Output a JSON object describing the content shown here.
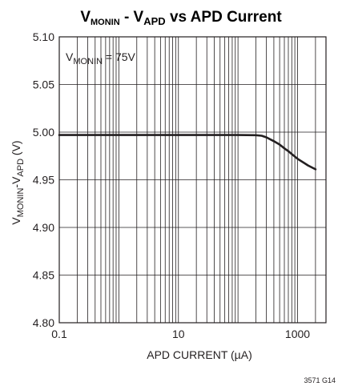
{
  "chart_data": {
    "type": "line",
    "title": {
      "main1": "V",
      "sub1": "MONIN",
      "mid": " - V",
      "sub2": "APD",
      "rest": " vs APD Current"
    },
    "xlabel": "APD CURRENT (µA)",
    "ylabel": {
      "main1": "V",
      "sub1": "MONIN",
      "mid": "-V",
      "sub2": "APD",
      "rest": " (V)"
    },
    "annotation": {
      "main": "V",
      "sub": "MONIN",
      "rest": " = 75V"
    },
    "figure_id": "3571 G14",
    "x_scale": "log",
    "xlim": [
      0.1,
      3000
    ],
    "ylim": [
      4.8,
      5.1
    ],
    "x_ticks": [
      {
        "value": 0.1,
        "label": "0.1"
      },
      {
        "value": 10,
        "label": "10"
      },
      {
        "value": 1000,
        "label": "1000"
      }
    ],
    "y_ticks": [
      {
        "value": 5.1,
        "label": "5.10"
      },
      {
        "value": 5.05,
        "label": "5.05"
      },
      {
        "value": 5.0,
        "label": "5.00"
      },
      {
        "value": 4.95,
        "label": "4.95"
      },
      {
        "value": 4.9,
        "label": "4.90"
      },
      {
        "value": 4.85,
        "label": "4.85"
      },
      {
        "value": 4.8,
        "label": "4.80"
      }
    ],
    "grid": true,
    "series": [
      {
        "x": [
          0.1,
          1,
          10,
          100,
          200,
          250,
          300,
          400,
          500,
          600,
          700,
          800,
          1000,
          1500,
          2000
        ],
        "y": [
          4.997,
          4.997,
          4.997,
          4.997,
          4.9968,
          4.9962,
          4.9945,
          4.9905,
          4.987,
          4.983,
          4.98,
          4.977,
          4.972,
          4.965,
          4.961
        ]
      }
    ],
    "colors": {
      "line": "#231f20",
      "grid": "#231f20"
    }
  }
}
